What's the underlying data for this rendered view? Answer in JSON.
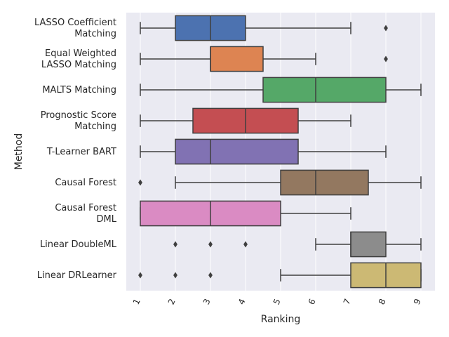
{
  "chart_data": {
    "type": "box",
    "orientation": "horizontal",
    "xlabel": "Ranking",
    "ylabel": "Method",
    "xlim": [
      0.6,
      9.4
    ],
    "xticks": [
      1,
      2,
      3,
      4,
      5,
      6,
      7,
      8,
      9
    ],
    "grid": true,
    "background": "#EAEAF2",
    "grid_color": "#FFFFFF",
    "categories": [
      {
        "lines": [
          "LASSO Coefficient",
          "Matching"
        ],
        "color": "#4C72B0",
        "whisker_low": 1,
        "q1": 2,
        "median": 3,
        "q3": 4,
        "whisker_high": 7,
        "outliers": [
          8
        ]
      },
      {
        "lines": [
          "Equal Weighted",
          "LASSO Matching"
        ],
        "color": "#DD8452",
        "whisker_low": 1,
        "q1": 3,
        "median": 3,
        "q3": 4.5,
        "whisker_high": 6,
        "outliers": [
          8
        ]
      },
      {
        "lines": [
          "MALTS Matching"
        ],
        "color": "#55A868",
        "whisker_low": 1,
        "q1": 4.5,
        "median": 6,
        "q3": 8,
        "whisker_high": 9,
        "outliers": []
      },
      {
        "lines": [
          "Prognostic Score",
          "Matching"
        ],
        "color": "#C44E52",
        "whisker_low": 1,
        "q1": 2.5,
        "median": 4,
        "q3": 5.5,
        "whisker_high": 7,
        "outliers": []
      },
      {
        "lines": [
          "T-Learner BART"
        ],
        "color": "#8172B3",
        "whisker_low": 1,
        "q1": 2,
        "median": 3,
        "q3": 5.5,
        "whisker_high": 8,
        "outliers": []
      },
      {
        "lines": [
          "Causal Forest"
        ],
        "color": "#937860",
        "whisker_low": 2,
        "q1": 5,
        "median": 6,
        "q3": 7.5,
        "whisker_high": 9,
        "outliers": [
          1
        ]
      },
      {
        "lines": [
          "Causal Forest",
          "DML"
        ],
        "color": "#DA8BC3",
        "whisker_low": 1,
        "q1": 1,
        "median": 3,
        "q3": 5,
        "whisker_high": 7,
        "outliers": []
      },
      {
        "lines": [
          "Linear DoubleML"
        ],
        "color": "#8C8C8C",
        "whisker_low": 6,
        "q1": 7,
        "median": 7,
        "q3": 8,
        "whisker_high": 9,
        "outliers": [
          2,
          3,
          4
        ]
      },
      {
        "lines": [
          "Linear DRLearner"
        ],
        "color": "#CCB974",
        "whisker_low": 5,
        "q1": 7,
        "median": 8,
        "q3": 9,
        "whisker_high": 9,
        "outliers": [
          1,
          2,
          3
        ]
      }
    ]
  }
}
